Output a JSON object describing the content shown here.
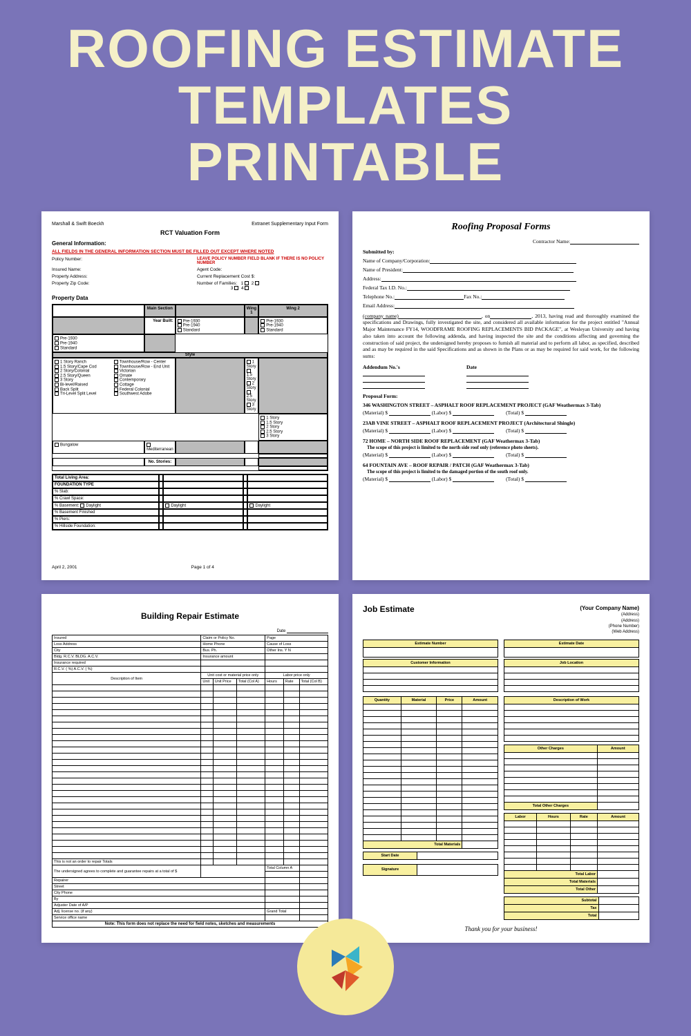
{
  "title": "ROOFING ESTIMATE TEMPLATES PRINTABLE",
  "page_bg": "#7a74b8",
  "title_color": "#f5f0c8",
  "rct": {
    "left": "Marshall & Swift Boeckh",
    "right": "Extranet Supplementary Input Form",
    "title": "RCT Valuation Form",
    "gen_info": "General Information:",
    "warn": "ALL FIELDS IN THE GENERAL INFORMATION SECTION MUST BE FILLED OUT EXCEPT WHERE NOTED",
    "warn2": "LEAVE POLICY NUMBER FIELD BLANK IF THERE IS NO POLICY NUMBER",
    "f_policy": "Policy Number:",
    "f_insured": "Insured Name:",
    "f_agent": "Agent Code:",
    "f_addr": "Property Address:",
    "f_cost": "Current Replacement Cost $:",
    "f_zip": "Property Zip Code:",
    "f_fam": "Number of Families:",
    "prop_data": "Property Data",
    "h_main": "Main Section",
    "h_w1": "Wing 1",
    "h_w2": "Wing 2",
    "year_built": "Year Built:",
    "yb_opts": [
      "Pre-1930",
      "Pre-1940",
      "Standard"
    ],
    "style": "Style",
    "styles_left": [
      "1 Story Ranch",
      "1.5 Story/Cape Cod",
      "2 Story/Colonial",
      "2.5 Story/Queen",
      "3 Story",
      "Bi-level/Raised",
      "Back Split",
      "Tri-Level Split Level"
    ],
    "styles_right": [
      "Townhouse/Row - Center",
      "Townhouse/Row - End Unit",
      "Victorian",
      "Ornate",
      "Contemporary",
      "Cottage",
      "Federal Colonial",
      "Southwest Adobe"
    ],
    "wing_stories": [
      "1 Story",
      "1.5 Story",
      "2 Story",
      "2.5 Story",
      "3 Story"
    ],
    "bungalow": "Bungalow",
    "med": "Mediterranean",
    "no_stories": "No. Stories:",
    "found_rows": [
      "Total Living Area:",
      "FOUNDATION TYPE",
      "% Slab:",
      "% Crawl Space:",
      "% Basement:",
      "% Basement Finished",
      "% Piers:",
      "% Hillside Foundation:"
    ],
    "daylight": "Daylight",
    "date": "April 2, 2001",
    "page": "Page 1 of 4"
  },
  "proposal": {
    "title": "Roofing Proposal Forms",
    "contractor": "Contractor Name:",
    "submitted": "Submitted by:",
    "fields": [
      "Name of Company/Corporation:",
      "Name of President:",
      "Address:",
      "Federal Tax I.D. No.:"
    ],
    "tel": "Telephone No.:",
    "fax": "Fax No.:",
    "email": "Email Address:",
    "co_name": "(company name)",
    "on": ", on",
    "year": ", 2013, having read",
    "para": "and thoroughly examined the specifications and Drawings, fully investigated the site, and considered all available information for the project entitled \"Annual Major Maintenance FY14, WOODFRAME ROOFING REPLACEMENTS BID PACKAGE\", at Wesleyan University and having also taken into account the following addenda, and having inspected the site and the conditions affecting and governing the construction of said project, the undersigned hereby proposes to furnish all material and to perform all labor, as specified, described and as may be required in the said Specifications and as shown in the Plans or as may be required for said work, for the following sums:",
    "addendum": "Addendum No.'s",
    "date_h": "Date",
    "proposal_form": "Proposal Form:",
    "projects": [
      {
        "name": "346 WASHINGTON STREET – ASPHALT ROOF REPLACEMENT PROJECT (GAF Weathermax 3-Tab)",
        "scope": ""
      },
      {
        "name": "23AB VINE STREET – ASPHALT ROOF REPLACEMENT PROJECT (Architectural Shingle)",
        "scope": ""
      },
      {
        "name": "72 HOME – NORTH SIDE ROOF REPLACEMENT (GAF Weathermax 3-Tab)",
        "scope": "The scope of this project is limited to the north side roof only (reference photo sheets)."
      },
      {
        "name": "64 FOUNTAIN AVE – ROOF REPAIR / PATCH (GAF Weathermax 3-Tab)",
        "scope": "The scope of this project is limited to the damaged portion of the south roof only."
      }
    ],
    "material": "(Material) $",
    "labor": "(Labor) $",
    "total": "(Total) $"
  },
  "repair": {
    "title": "Building Repair Estimate",
    "fields_l": [
      "Insured",
      "Loss Address",
      "City",
      "Bldg. R.C.V.       BLDG. A.C.V.",
      "Insurance required",
      "R.C.V. (      %) A.C.V. (      %)"
    ],
    "fields_m1": [
      "Claim or Policy No.",
      "Home Phone",
      "Bus. Ph.",
      "Insurance amount"
    ],
    "fields_r": [
      "Page",
      "Cause of Loss",
      "Other Ins.       Y       N"
    ],
    "date_label": "Date",
    "h_desc": "Description of Item",
    "h_unit": "Unit",
    "h_up": "Unit Price",
    "h_ta": "Total (Col A)",
    "h_hours": "Hours",
    "h_rate": "Rate",
    "h_tb": "Total (Col B)",
    "h_mat": "Unit cost or material price only",
    "h_lab": "Labor price only",
    "disclaim": "This is not an order to repair        Totals",
    "guarantee": "The undersigned agrees to complete and guarantee repairs at a total of $",
    "total_a": "Total Column A",
    "sig_rows": [
      "Repairer",
      "Street",
      "City                           Phone",
      "By",
      "Adjuster                        Date of A/P",
      "Adj. license no. (if any)",
      "Service office name"
    ],
    "grand": "Grand Total",
    "note": "Note: This form does not replace the need for field notes, sketches and measurements"
  },
  "job": {
    "title": "Job Estimate",
    "co": "(Your Company Name)",
    "co_lines": [
      "(Address)",
      "(Address)",
      "(Phone Number)",
      "(Web Address)"
    ],
    "est_num": "Estimate Number",
    "cust_info": "Customer Information",
    "est_date": "Estimate Date",
    "job_loc": "Job Location",
    "qty": "Quantity",
    "material": "Material",
    "price": "Price",
    "amount": "Amount",
    "dow": "Description of Work",
    "other": "Other Charges",
    "toc": "Total Other Charges",
    "labor": "Labor",
    "hours": "Hours",
    "rate": "Rate",
    "tmat": "Total Materials",
    "start": "Start Date",
    "tlabor": "Total Labor",
    "tother": "Total Other",
    "subtotal": "Subtotal",
    "tax": "Tax",
    "total": "Total",
    "sig": "Signature",
    "thanks": "Thank you for your business!"
  },
  "logo_colors": [
    "#3bb4c9",
    "#2a7bb8",
    "#f5a623",
    "#e05a2b",
    "#c0392b"
  ]
}
